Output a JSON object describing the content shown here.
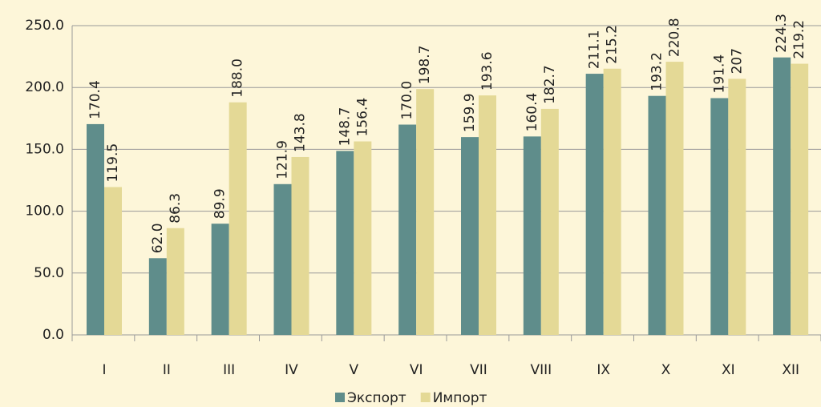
{
  "chart_data": {
    "type": "bar",
    "categories": [
      "I",
      "II",
      "III",
      "IV",
      "V",
      "VI",
      "VII",
      "VIII",
      "IX",
      "X",
      "XI",
      "XII"
    ],
    "series": [
      {
        "name": "Экспорт",
        "color": "#5f8d8b",
        "values": [
          170.4,
          62.0,
          89.9,
          121.9,
          148.7,
          170.0,
          159.9,
          160.4,
          211.1,
          193.2,
          191.4,
          224.3
        ],
        "value_labels": [
          "170.4",
          "62.0",
          "89.9",
          "121.9",
          "148.7",
          "170.0",
          "159.9",
          "160.4",
          "211.1",
          "193.2",
          "191.4",
          "224.3"
        ]
      },
      {
        "name": "Импорт",
        "color": "#e4d996",
        "values": [
          119.5,
          86.3,
          188.0,
          143.8,
          156.4,
          198.7,
          193.6,
          182.7,
          215.2,
          220.8,
          207,
          219.2
        ],
        "value_labels": [
          "119.5",
          "86.3",
          "188.0",
          "143.8",
          "156.4",
          "198.7",
          "193.6",
          "182.7",
          "215.2",
          "220.8",
          "207",
          "219.2"
        ]
      }
    ],
    "ylim": [
      0,
      250
    ],
    "yticks": [
      {
        "value": 0,
        "label": "0.0"
      },
      {
        "value": 50,
        "label": "50.0"
      },
      {
        "value": 100,
        "label": "100.0"
      },
      {
        "value": 150,
        "label": "150.0"
      },
      {
        "value": 200,
        "label": "200.0"
      },
      {
        "value": 250,
        "label": "250.0"
      }
    ],
    "grid": true,
    "legend": "bottom"
  }
}
